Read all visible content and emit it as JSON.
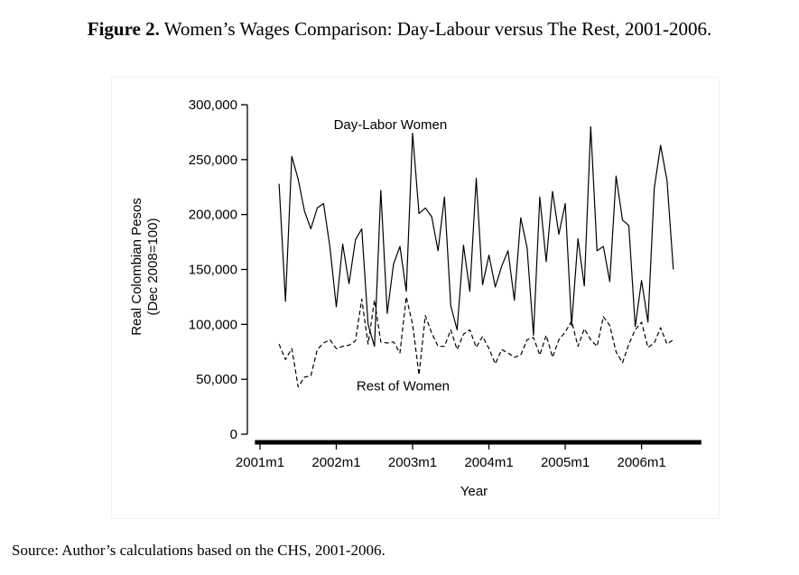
{
  "figure": {
    "label": "Figure 2.",
    "title": "Women’s Wages Comparison: Day-Labour versus The Rest, 2001-2006."
  },
  "source": "Source: Author’s calculations based on the CHS, 2001-2006.",
  "chart_data": {
    "type": "line",
    "xlabel": "Year",
    "ylabel_lines": [
      "Real Colombian Pesos",
      "(Dec 2008=100)"
    ],
    "x_range_months": [
      0,
      69
    ],
    "x_ticks": [
      {
        "month": 0,
        "label": "2001m1"
      },
      {
        "month": 12,
        "label": "2002m1"
      },
      {
        "month": 24,
        "label": "2003m1"
      },
      {
        "month": 36,
        "label": "2004m1"
      },
      {
        "month": 48,
        "label": "2005m1"
      },
      {
        "month": 60,
        "label": "2006m1"
      }
    ],
    "ylim": [
      0,
      300000
    ],
    "y_ticks": [
      {
        "value": 0,
        "label": "0"
      },
      {
        "value": 50000,
        "label": "50,000"
      },
      {
        "value": 100000,
        "label": "100,000"
      },
      {
        "value": 150000,
        "label": "150,000"
      },
      {
        "value": 200000,
        "label": "200,000"
      },
      {
        "value": 250000,
        "label": "250,000"
      },
      {
        "value": 300000,
        "label": "300,000"
      }
    ],
    "series": [
      {
        "name": "Day-Labor Women",
        "label_anchor": {
          "month": 20.5,
          "value": 278000
        },
        "style": "solid",
        "x": [
          3,
          4,
          5,
          6,
          7,
          8,
          9,
          10,
          11,
          12,
          13,
          14,
          15,
          16,
          17,
          18,
          19,
          20,
          21,
          22,
          23,
          24,
          25,
          26,
          27,
          28,
          29,
          30,
          31,
          32,
          33,
          34,
          35,
          36,
          37,
          38,
          39,
          40,
          41,
          42,
          43,
          44,
          45,
          46,
          47,
          48,
          49,
          50,
          51,
          52,
          53,
          54,
          55,
          56,
          57,
          58,
          59,
          60,
          61,
          62,
          63,
          64,
          65
        ],
        "values": [
          228000,
          121000,
          253000,
          232000,
          203000,
          187000,
          206000,
          210000,
          170000,
          116000,
          173000,
          137000,
          177000,
          187000,
          100000,
          80000,
          222000,
          110000,
          155000,
          171000,
          130000,
          274000,
          201000,
          206000,
          198000,
          167000,
          216000,
          117000,
          95000,
          172000,
          130000,
          233000,
          136000,
          163000,
          134000,
          153000,
          167000,
          122000,
          197000,
          170000,
          90000,
          216000,
          157000,
          221000,
          182000,
          210000,
          99000,
          178000,
          135000,
          280000,
          167000,
          171000,
          139000,
          235000,
          195000,
          190000,
          98000,
          140000,
          102000,
          224000,
          263000,
          231000,
          150000
        ]
      },
      {
        "name": "Rest of Women",
        "label_anchor": {
          "month": 22.5,
          "value": 40000
        },
        "style": "dashed",
        "x": [
          3,
          4,
          5,
          6,
          7,
          8,
          9,
          10,
          11,
          12,
          13,
          14,
          15,
          16,
          17,
          18,
          19,
          20,
          21,
          22,
          23,
          24,
          25,
          26,
          27,
          28,
          29,
          30,
          31,
          32,
          33,
          34,
          35,
          36,
          37,
          38,
          39,
          40,
          41,
          42,
          43,
          44,
          45,
          46,
          47,
          48,
          49,
          50,
          51,
          52,
          53,
          54,
          55,
          56,
          57,
          58,
          59,
          60,
          61,
          62,
          63,
          64,
          65
        ],
        "values": [
          82000,
          68000,
          78000,
          43000,
          52000,
          53000,
          77000,
          83000,
          86000,
          78000,
          80000,
          81000,
          85000,
          123000,
          82000,
          122000,
          84000,
          83000,
          84000,
          74000,
          125000,
          100000,
          54000,
          108000,
          92000,
          80000,
          80000,
          95000,
          77000,
          91000,
          95000,
          79000,
          89000,
          78000,
          64000,
          77000,
          74000,
          70000,
          72000,
          86000,
          88000,
          72000,
          90000,
          70000,
          86000,
          93000,
          103000,
          80000,
          96000,
          86000,
          80000,
          107000,
          99000,
          75000,
          65000,
          82000,
          95000,
          102000,
          79000,
          83000,
          97000,
          82000,
          86000
        ]
      }
    ]
  }
}
